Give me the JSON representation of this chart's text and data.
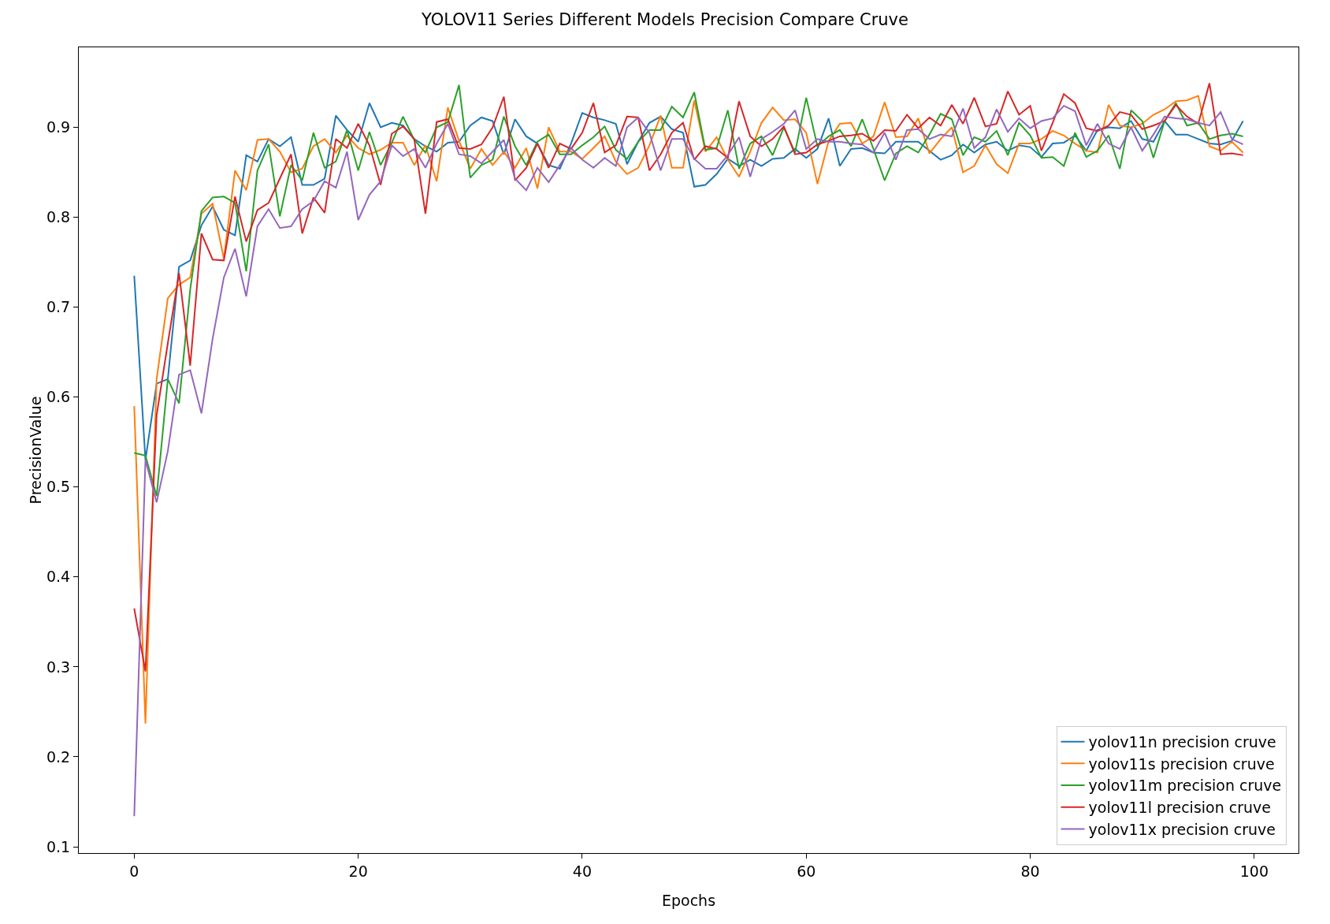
{
  "chart_data": {
    "type": "line",
    "title": "YOLOV11 Series Different Models Precision Compare Cruve",
    "xlabel": "Epochs",
    "ylabel": "PrecisionValue",
    "x": [
      0,
      1,
      2,
      3,
      4,
      5,
      6,
      7,
      8,
      9,
      10,
      11,
      12,
      13,
      14,
      15,
      16,
      17,
      18,
      19,
      20,
      21,
      22,
      23,
      24,
      25,
      26,
      27,
      28,
      29,
      30,
      31,
      32,
      33,
      34,
      35,
      36,
      37,
      38,
      39,
      40,
      41,
      42,
      43,
      44,
      45,
      46,
      47,
      48,
      49,
      50,
      51,
      52,
      53,
      54,
      55,
      56,
      57,
      58,
      59,
      60,
      61,
      62,
      63,
      64,
      65,
      66,
      67,
      68,
      69,
      70,
      71,
      72,
      73,
      74,
      75,
      76,
      77,
      78,
      79,
      80,
      81,
      82,
      83,
      84,
      85,
      86,
      87,
      88,
      89,
      90,
      91,
      92,
      93,
      94,
      95,
      96,
      97,
      98,
      99
    ],
    "series": [
      {
        "name": "yolov11n precision cruve",
        "color": "#1f77b4",
        "values": [
          0.735,
          0.53,
          0.615,
          0.62,
          0.745,
          0.752,
          0.791,
          0.812,
          0.786,
          0.78,
          0.869,
          0.862,
          0.887,
          0.879,
          0.889,
          0.836,
          0.836,
          0.843,
          0.913,
          0.897,
          0.884,
          0.927,
          0.9,
          0.905,
          0.902,
          0.887,
          0.879,
          0.873,
          0.883,
          0.884,
          0.902,
          0.911,
          0.907,
          0.87,
          0.909,
          0.89,
          0.882,
          0.858,
          0.854,
          0.882,
          0.916,
          0.911,
          0.908,
          0.904,
          0.859,
          0.884,
          0.905,
          0.912,
          0.898,
          0.894,
          0.834,
          0.836,
          0.848,
          0.865,
          0.857,
          0.864,
          0.857,
          0.865,
          0.866,
          0.876,
          0.866,
          0.876,
          0.91,
          0.857,
          0.876,
          0.877,
          0.872,
          0.871,
          0.884,
          0.884,
          0.884,
          0.874,
          0.864,
          0.869,
          0.881,
          0.872,
          0.881,
          0.884,
          0.874,
          0.88,
          0.878,
          0.867,
          0.882,
          0.883,
          0.891,
          0.874,
          0.897,
          0.9,
          0.899,
          0.907,
          0.887,
          0.884,
          0.907,
          0.892,
          0.892,
          0.887,
          0.882,
          0.881,
          0.885,
          0.907
        ]
      },
      {
        "name": "yolov11s precision cruve",
        "color": "#ff7f0e",
        "values": [
          0.59,
          0.237,
          0.62,
          0.71,
          0.725,
          0.733,
          0.804,
          0.815,
          0.754,
          0.852,
          0.83,
          0.886,
          0.887,
          0.873,
          0.85,
          0.854,
          0.879,
          0.887,
          0.872,
          0.891,
          0.877,
          0.87,
          0.875,
          0.883,
          0.883,
          0.858,
          0.88,
          0.84,
          0.922,
          0.885,
          0.854,
          0.876,
          0.858,
          0.873,
          0.855,
          0.877,
          0.832,
          0.9,
          0.873,
          0.873,
          0.865,
          0.877,
          0.89,
          0.862,
          0.848,
          0.855,
          0.88,
          0.913,
          0.855,
          0.855,
          0.93,
          0.873,
          0.889,
          0.864,
          0.845,
          0.873,
          0.905,
          0.922,
          0.908,
          0.909,
          0.894,
          0.837,
          0.885,
          0.904,
          0.905,
          0.882,
          0.89,
          0.928,
          0.889,
          0.89,
          0.91,
          0.871,
          0.887,
          0.9,
          0.85,
          0.857,
          0.88,
          0.859,
          0.849,
          0.882,
          0.882,
          0.887,
          0.896,
          0.891,
          0.882,
          0.874,
          0.872,
          0.925,
          0.902,
          0.9,
          0.904,
          0.914,
          0.92,
          0.929,
          0.93,
          0.935,
          0.879,
          0.874,
          0.884,
          0.872
        ]
      },
      {
        "name": "yolov11m precision cruve",
        "color": "#2ca02c",
        "values": [
          0.538,
          0.535,
          0.49,
          0.62,
          0.593,
          0.72,
          0.807,
          0.822,
          0.823,
          0.816,
          0.74,
          0.852,
          0.881,
          0.801,
          0.858,
          0.841,
          0.894,
          0.855,
          0.862,
          0.897,
          0.852,
          0.895,
          0.858,
          0.883,
          0.912,
          0.886,
          0.872,
          0.9,
          0.906,
          0.947,
          0.844,
          0.858,
          0.864,
          0.912,
          0.879,
          0.858,
          0.884,
          0.892,
          0.87,
          0.87,
          0.88,
          0.889,
          0.901,
          0.875,
          0.865,
          0.884,
          0.897,
          0.897,
          0.923,
          0.911,
          0.939,
          0.875,
          0.877,
          0.919,
          0.854,
          0.882,
          0.89,
          0.869,
          0.9,
          0.872,
          0.933,
          0.879,
          0.89,
          0.897,
          0.879,
          0.909,
          0.876,
          0.841,
          0.871,
          0.879,
          0.872,
          0.892,
          0.915,
          0.909,
          0.869,
          0.889,
          0.884,
          0.896,
          0.869,
          0.905,
          0.891,
          0.866,
          0.867,
          0.857,
          0.894,
          0.867,
          0.874,
          0.891,
          0.854,
          0.919,
          0.907,
          0.866,
          0.907,
          0.927,
          0.902,
          0.905,
          0.887,
          0.891,
          0.893,
          0.89
        ]
      },
      {
        "name": "yolov11l precision cruve",
        "color": "#d62728",
        "values": [
          0.365,
          0.295,
          0.58,
          0.66,
          0.738,
          0.635,
          0.782,
          0.753,
          0.752,
          0.823,
          0.773,
          0.808,
          0.816,
          0.843,
          0.87,
          0.782,
          0.822,
          0.805,
          0.887,
          0.877,
          0.904,
          0.88,
          0.836,
          0.893,
          0.901,
          0.887,
          0.804,
          0.906,
          0.909,
          0.877,
          0.876,
          0.881,
          0.9,
          0.934,
          0.841,
          0.855,
          0.882,
          0.855,
          0.882,
          0.876,
          0.894,
          0.927,
          0.872,
          0.88,
          0.912,
          0.911,
          0.852,
          0.87,
          0.894,
          0.905,
          0.864,
          0.879,
          0.876,
          0.866,
          0.929,
          0.89,
          0.879,
          0.887,
          0.901,
          0.87,
          0.872,
          0.881,
          0.885,
          0.89,
          0.891,
          0.893,
          0.885,
          0.897,
          0.896,
          0.914,
          0.899,
          0.911,
          0.902,
          0.925,
          0.904,
          0.933,
          0.901,
          0.904,
          0.94,
          0.914,
          0.924,
          0.874,
          0.905,
          0.937,
          0.927,
          0.899,
          0.896,
          0.902,
          0.917,
          0.914,
          0.898,
          0.902,
          0.907,
          0.925,
          0.912,
          0.904,
          0.949,
          0.87,
          0.871,
          0.869
        ]
      },
      {
        "name": "yolov11x precision cruve",
        "color": "#9467bd",
        "values": [
          0.134,
          0.53,
          0.483,
          0.54,
          0.625,
          0.63,
          0.582,
          0.665,
          0.733,
          0.765,
          0.712,
          0.79,
          0.809,
          0.788,
          0.79,
          0.809,
          0.818,
          0.84,
          0.833,
          0.873,
          0.797,
          0.825,
          0.84,
          0.88,
          0.868,
          0.876,
          0.855,
          0.882,
          0.904,
          0.87,
          0.868,
          0.86,
          0.873,
          0.886,
          0.843,
          0.83,
          0.855,
          0.839,
          0.858,
          0.877,
          0.864,
          0.855,
          0.866,
          0.857,
          0.9,
          0.911,
          0.894,
          0.852,
          0.887,
          0.887,
          0.865,
          0.854,
          0.854,
          0.869,
          0.889,
          0.845,
          0.887,
          0.895,
          0.904,
          0.919,
          0.876,
          0.887,
          0.884,
          0.884,
          0.882,
          0.881,
          0.872,
          0.894,
          0.864,
          0.897,
          0.898,
          0.887,
          0.892,
          0.89,
          0.921,
          0.877,
          0.889,
          0.92,
          0.895,
          0.91,
          0.899,
          0.907,
          0.91,
          0.924,
          0.918,
          0.88,
          0.904,
          0.882,
          0.876,
          0.9,
          0.874,
          0.892,
          0.912,
          0.91,
          0.909,
          0.905,
          0.902,
          0.917,
          0.887,
          0.881
        ]
      }
    ],
    "xlim": [
      -4.95,
      103.95
    ],
    "xticks": [
      0,
      20,
      40,
      60,
      80,
      100
    ],
    "ylim": [
      0.093,
      0.989
    ],
    "yticks": [
      0.1,
      0.2,
      0.3,
      0.4,
      0.5,
      0.6,
      0.7,
      0.8,
      0.9
    ],
    "grid": false,
    "legend": "bottom right",
    "marker": "none",
    "line_style": "solid"
  }
}
